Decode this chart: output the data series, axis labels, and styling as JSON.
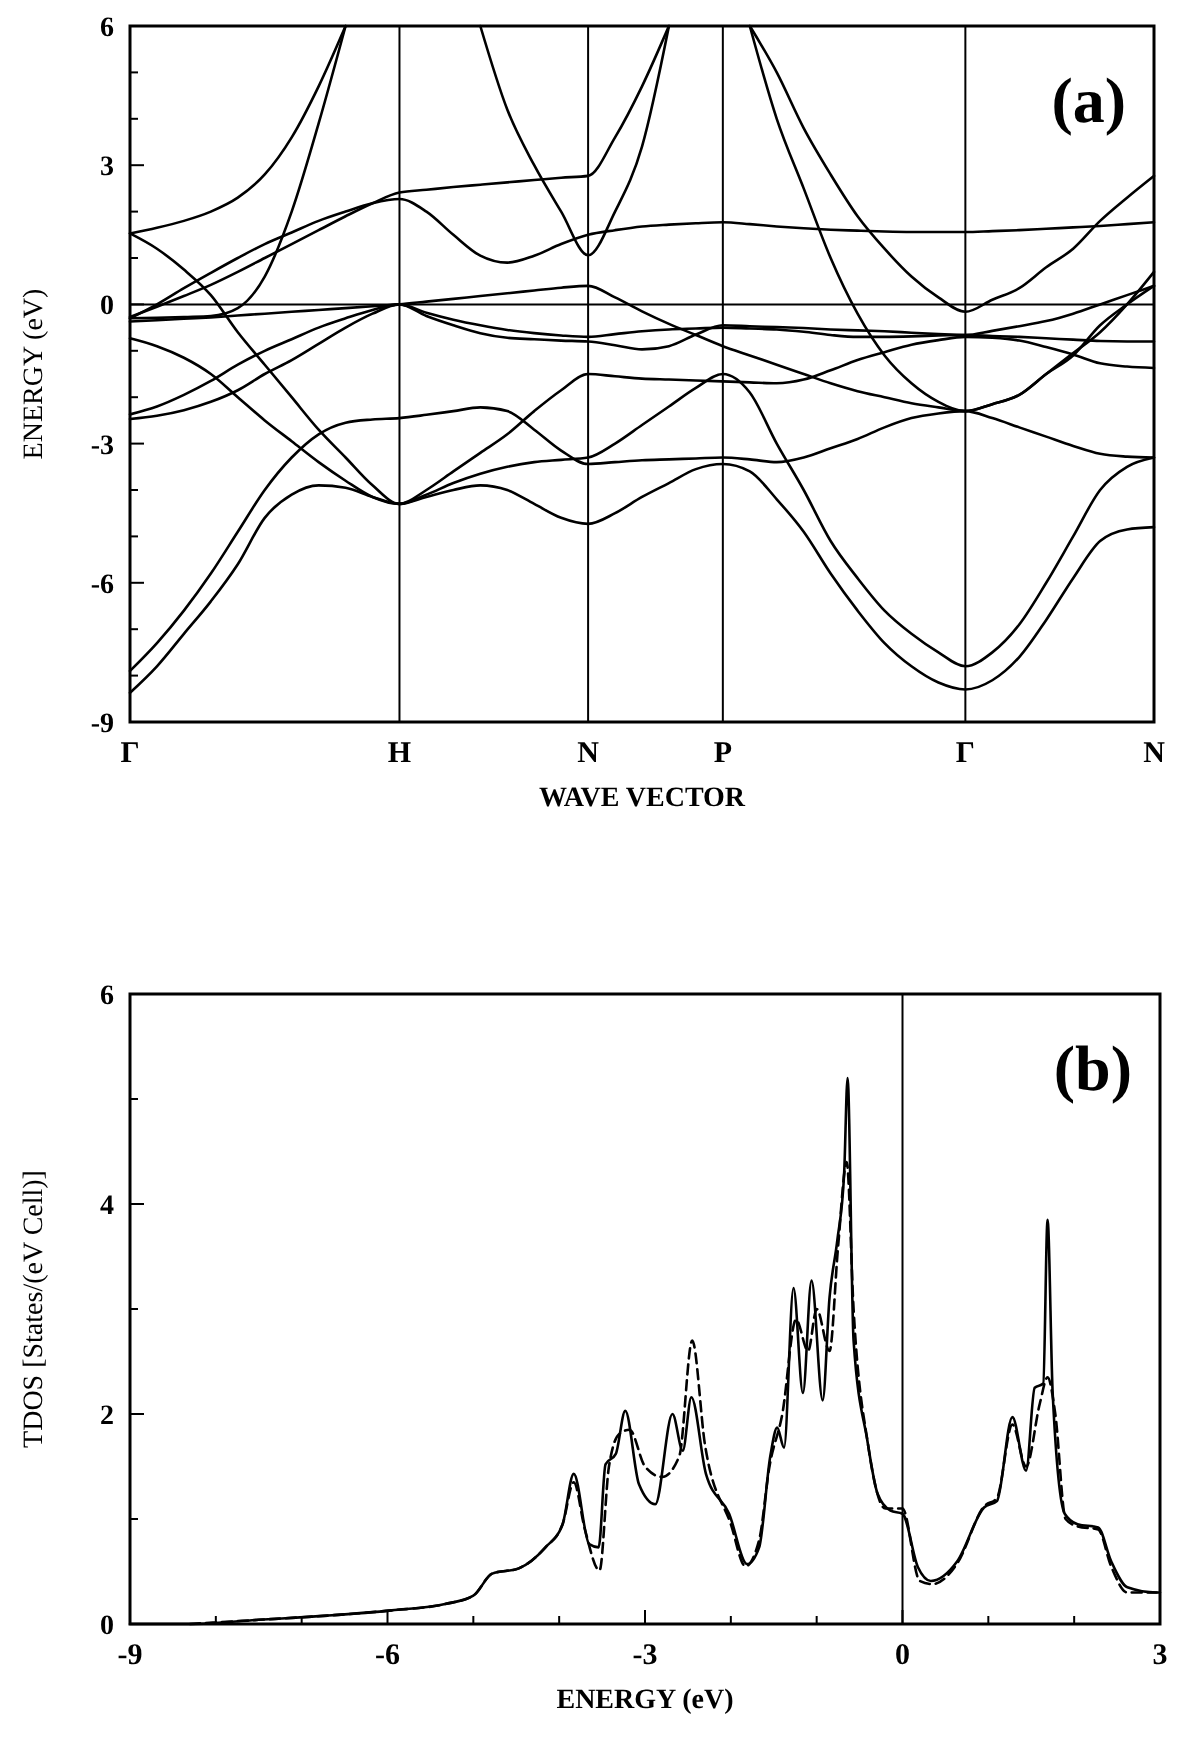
{
  "chart_data": [
    {
      "type": "line",
      "xlabel": "WAVE VECTOR",
      "ylabel": "ENERGY (eV)",
      "annotations": [
        "(a)"
      ],
      "grid": "x",
      "categories": [
        "Γ",
        null,
        null,
        null,
        null,
        null,
        null,
        null,
        null,
        null,
        "H",
        null,
        null,
        null,
        null,
        null,
        null,
        "N",
        null,
        null,
        null,
        null,
        "P",
        null,
        null,
        null,
        null,
        null,
        null,
        null,
        null,
        "Γ",
        null,
        null,
        null,
        null,
        null,
        null,
        "N"
      ],
      "ylim": [
        -9,
        6
      ],
      "yticks": [
        -9,
        {
          "value": -8,
          "label": null
        },
        {
          "value": -7,
          "label": null
        },
        -6,
        {
          "value": -5,
          "label": null
        },
        {
          "value": -4,
          "label": null
        },
        -3,
        {
          "value": -2,
          "label": null
        },
        {
          "value": -1,
          "label": null
        },
        0,
        {
          "value": 1,
          "label": null
        },
        {
          "value": 2,
          "label": null
        },
        3,
        {
          "value": 4,
          "label": null
        },
        {
          "value": 5,
          "label": null
        },
        6
      ],
      "ref_lines": [
        {
          "axis": "y",
          "value": 0,
          "color": "#000000"
        }
      ],
      "series": [
        {
          "color": "#000000",
          "values": [
            -8.37,
            -7.8,
            -7.1,
            -6.4,
            -5.6,
            -4.6,
            -4.1,
            -3.9,
            -3.95,
            -4.15,
            -4.3,
            -4.15,
            -4.0,
            -3.9,
            -4.0,
            -4.3,
            -4.6,
            -4.73,
            -4.5,
            -4.15,
            -3.85,
            -3.55,
            -3.44,
            -3.6,
            -4.2,
            -4.9,
            -5.8,
            -6.6,
            -7.3,
            -7.8,
            -8.15,
            -8.3,
            -8.1,
            -7.6,
            -6.8,
            -5.9,
            -5.1,
            -4.85,
            -4.8
          ]
        },
        {
          "color": "#000000",
          "values": [
            -7.9,
            -7.3,
            -6.6,
            -5.8,
            -4.9,
            -4.0,
            -3.3,
            -2.8,
            -2.55,
            -2.48,
            -2.45,
            -2.38,
            -2.3,
            -2.22,
            -2.3,
            -2.7,
            -3.15,
            -3.44,
            -3.4,
            -3.36,
            -3.34,
            -3.32,
            -3.3,
            -3.34,
            -3.4,
            -3.3,
            -3.1,
            -2.9,
            -2.65,
            -2.45,
            -2.35,
            -2.3,
            -2.45,
            -2.65,
            -2.85,
            -3.05,
            -3.22,
            -3.28,
            -3.3
          ]
        },
        {
          "color": "#000000",
          "values": [
            1.53,
            1.2,
            0.75,
            0.2,
            -0.6,
            -1.3,
            -2.0,
            -2.7,
            -3.3,
            -3.9,
            -4.3,
            -4.0,
            -3.6,
            -3.2,
            -2.8,
            -2.3,
            -1.85,
            -1.5,
            -1.55,
            -1.6,
            -1.62,
            -1.64,
            -1.66,
            -1.68,
            -1.7,
            -1.62,
            -1.42,
            -1.2,
            -1.03,
            -0.87,
            -0.77,
            -0.7,
            -0.72,
            -0.78,
            -0.92,
            -1.08,
            -1.27,
            -1.34,
            -1.37
          ]
        },
        {
          "color": "#000000",
          "values": [
            -0.73,
            -0.9,
            -1.15,
            -1.5,
            -2.0,
            -2.5,
            -2.95,
            -3.4,
            -3.8,
            -4.15,
            -4.3,
            -4.1,
            -3.85,
            -3.65,
            -3.5,
            -3.4,
            -3.35,
            -3.3,
            -3.0,
            -2.6,
            -2.2,
            -1.8,
            -1.5,
            -1.9,
            -3.0,
            -4.0,
            -5.1,
            -5.9,
            -6.6,
            -7.1,
            -7.5,
            -7.8,
            -7.5,
            -6.9,
            -6.0,
            -5.0,
            -4.0,
            -3.5,
            -3.3
          ]
        },
        {
          "color": "#000000",
          "values": [
            -2.47,
            -2.4,
            -2.28,
            -2.1,
            -1.85,
            -1.5,
            -1.2,
            -0.85,
            -0.5,
            -0.2,
            0,
            -0.25,
            -0.45,
            -0.62,
            -0.72,
            -0.75,
            -0.78,
            -0.8,
            -0.88,
            -0.97,
            -0.9,
            -0.65,
            -0.45,
            -0.47,
            -0.49,
            -0.51,
            -0.54,
            -0.56,
            -0.58,
            -0.61,
            -0.64,
            -0.66,
            -0.57,
            -0.47,
            -0.36,
            -0.2,
            0,
            0.2,
            0.4
          ]
        },
        {
          "color": "#000000",
          "values": [
            -2.37,
            -2.2,
            -1.95,
            -1.65,
            -1.3,
            -1.0,
            -0.75,
            -0.5,
            -0.3,
            -0.12,
            0,
            -0.18,
            -0.33,
            -0.45,
            -0.55,
            -0.62,
            -0.67,
            -0.7,
            -0.64,
            -0.58,
            -0.54,
            -0.52,
            -0.5,
            -0.52,
            -0.54,
            -0.59,
            -0.66,
            -0.7,
            -0.7,
            -0.69,
            -0.67,
            -0.66,
            -0.68,
            -0.7,
            -0.73,
            -0.76,
            -0.79,
            -0.8,
            -0.8
          ]
        },
        {
          "color": "#000000",
          "values": [
            -0.37,
            -0.34,
            -0.31,
            -0.28,
            -0.24,
            -0.2,
            -0.16,
            -0.12,
            -0.08,
            -0.04,
            0,
            0.06,
            0.12,
            0.18,
            0.24,
            0.3,
            0.36,
            0.4,
            0.15,
            -0.15,
            -0.42,
            -0.66,
            -0.9,
            -1.1,
            -1.3,
            -1.5,
            -1.7,
            -1.87,
            -2.0,
            -2.13,
            -2.22,
            -2.3,
            -2.15,
            -1.95,
            -1.5,
            -1.05,
            -0.6,
            0.0,
            0.7
          ]
        },
        {
          "color": "#000000",
          "values": [
            -0.3,
            0.0,
            0.35,
            0.68,
            1.0,
            1.3,
            1.55,
            1.8,
            2.0,
            2.18,
            2.27,
            2.0,
            1.5,
            1.05,
            0.9,
            1.05,
            1.3,
            1.5,
            1.6,
            1.68,
            1.72,
            1.75,
            1.77,
            1.73,
            1.68,
            1.64,
            1.61,
            1.59,
            1.57,
            1.56,
            1.56,
            1.56,
            1.58,
            1.6,
            1.63,
            1.66,
            1.69,
            1.73,
            1.77
          ]
        },
        {
          "color": "#000000",
          "values": [
            -0.27,
            -0.05,
            0.18,
            0.42,
            0.7,
            1.0,
            1.3,
            1.6,
            1.9,
            2.18,
            2.41,
            2.47,
            2.53,
            2.58,
            2.63,
            2.68,
            2.73,
            2.77,
            3.6,
            4.7,
            6,
            null,
            null,
            null,
            null,
            null,
            null,
            null,
            null,
            null,
            null,
            null,
            null,
            null,
            null,
            null,
            null,
            null,
            null
          ]
        },
        {
          "color": "#000000",
          "values": [
            1.53,
            1.65,
            1.8,
            2.0,
            2.3,
            2.8,
            3.6,
            4.7,
            6,
            null,
            null,
            null,
            null,
            null,
            null,
            null,
            null,
            null,
            null,
            null,
            null,
            null,
            null,
            null,
            null,
            null,
            null,
            null,
            null,
            null,
            null,
            null,
            null,
            null,
            null,
            null,
            null,
            null,
            null
          ]
        },
        {
          "color": "#000000",
          "values": [
            -0.3,
            -0.29,
            -0.27,
            -0.25,
            -0.08,
            0.6,
            2.0,
            3.9,
            6,
            null,
            null,
            null,
            null,
            null,
            null,
            null,
            null,
            null,
            null,
            null,
            null,
            null,
            null,
            null,
            null,
            null,
            null,
            null,
            null,
            null,
            null,
            null,
            null,
            null,
            null,
            null,
            null,
            null,
            null
          ]
        },
        {
          "color": "#000000",
          "values": [
            null,
            null,
            null,
            null,
            null,
            null,
            null,
            null,
            null,
            null,
            null,
            null,
            null,
            6,
            4.2,
            3.0,
            2.0,
            1.06,
            2.0,
            3.4,
            6,
            null,
            null,
            null,
            null,
            null,
            null,
            null,
            null,
            null,
            null,
            null,
            null,
            null,
            null,
            null,
            null,
            null,
            null
          ]
        },
        {
          "color": "#000000",
          "values": [
            null,
            null,
            null,
            null,
            null,
            null,
            null,
            null,
            null,
            null,
            null,
            null,
            null,
            null,
            null,
            null,
            null,
            null,
            null,
            null,
            null,
            null,
            null,
            6,
            5.0,
            3.8,
            2.8,
            1.9,
            1.2,
            0.6,
            0.15,
            -0.16,
            0.1,
            0.35,
            0.8,
            1.2,
            1.8,
            2.3,
            2.77
          ]
        },
        {
          "color": "#000000",
          "values": [
            null,
            null,
            null,
            null,
            null,
            null,
            null,
            null,
            null,
            null,
            null,
            null,
            null,
            null,
            null,
            null,
            null,
            null,
            null,
            null,
            null,
            null,
            null,
            6,
            4.0,
            2.5,
            1.0,
            -0.2,
            -1.1,
            -1.7,
            -2.1,
            -2.3,
            -2.15,
            -1.95,
            -1.5,
            -1.1,
            -0.45,
            0.0,
            0.4
          ]
        }
      ]
    },
    {
      "type": "line",
      "xlabel": "ENERGY (eV)",
      "ylabel": "TDOS [States/(eV Cell)]",
      "annotations": [
        "(b)"
      ],
      "xlim": [
        -9,
        3
      ],
      "xticks": [
        -9,
        {
          "value": -8,
          "label": null
        },
        {
          "value": -7,
          "label": null
        },
        -6,
        {
          "value": -5,
          "label": null
        },
        {
          "value": -4,
          "label": null
        },
        -3,
        {
          "value": -2,
          "label": null
        },
        {
          "value": -1,
          "label": null
        },
        0,
        {
          "value": 1,
          "label": null
        },
        {
          "value": 2,
          "label": null
        },
        3
      ],
      "ylim": [
        0,
        6
      ],
      "yticks": [
        0,
        {
          "value": 1,
          "label": null
        },
        2,
        {
          "value": 3,
          "label": null
        },
        4,
        {
          "value": 5,
          "label": null
        },
        6
      ],
      "ref_lines": [
        {
          "axis": "x",
          "value": 0,
          "color": "#000000"
        }
      ],
      "series": [
        {
          "color": "#000000",
          "line_style": "solid",
          "x": [
            -9,
            -8.3,
            -7.5,
            -6.7,
            -5.95,
            -5.33,
            -5.0,
            -4.78,
            -4.47,
            -4.16,
            -3.96,
            -3.83,
            -3.65,
            -3.54,
            -3.46,
            -3.34,
            -3.23,
            -3.07,
            -2.88,
            -2.68,
            -2.56,
            -2.46,
            -2.29,
            -2.02,
            -1.81,
            -1.67,
            -1.54,
            -1.46,
            -1.38,
            -1.27,
            -1.16,
            -1.06,
            -0.93,
            -0.85,
            -0.76,
            -0.68,
            -0.64,
            -0.57,
            -0.41,
            -0.29,
            -0.14,
            0,
            0.18,
            0.33,
            0.64,
            0.95,
            1.1,
            1.28,
            1.44,
            1.54,
            1.64,
            1.69,
            1.75,
            1.89,
            2.04,
            2.28,
            2.43,
            2.62,
            2.96,
            3
          ],
          "values": [
            0,
            0,
            0.04,
            0.08,
            0.13,
            0.19,
            0.27,
            0.48,
            0.53,
            0.73,
            0.95,
            1.43,
            0.76,
            0.73,
            1.52,
            1.62,
            2.03,
            1.33,
            1.14,
            2.0,
            1.65,
            2.16,
            1.43,
            1.05,
            0.57,
            0.73,
            1.6,
            1.87,
            1.68,
            3.2,
            2.2,
            3.27,
            2.13,
            3.11,
            3.65,
            4.29,
            5.2,
            2.7,
            1.75,
            1.24,
            1.08,
            1.05,
            0.54,
            0.41,
            0.6,
            1.11,
            1.17,
            1.97,
            1.46,
            2.25,
            2.29,
            3.85,
            2.19,
            1.05,
            0.95,
            0.92,
            0.6,
            0.35,
            0.3,
            0.3
          ]
        },
        {
          "color": "#000000",
          "line_style": "dashed",
          "x": [
            -8.3,
            -7.5,
            -6.7,
            -5.95,
            -5.33,
            -5.0,
            -4.78,
            -4.47,
            -4.16,
            -3.96,
            -3.83,
            -3.7,
            -3.53,
            -3.42,
            -3.3,
            -3.18,
            -3.0,
            -2.8,
            -2.6,
            -2.45,
            -2.3,
            -2.0,
            -1.83,
            -1.67,
            -1.55,
            -1.4,
            -1.24,
            -1.1,
            -1.0,
            -0.85,
            -0.75,
            -0.65,
            -0.57,
            -0.4,
            -0.2,
            0,
            0.2,
            0.35,
            0.64,
            0.95,
            1.1,
            1.28,
            1.44,
            1.6,
            1.69,
            1.78,
            1.9,
            2.04,
            2.28,
            2.43,
            2.62,
            2.96
          ],
          "values": [
            0,
            0.04,
            0.08,
            0.13,
            0.19,
            0.27,
            0.48,
            0.53,
            0.73,
            0.95,
            1.35,
            0.9,
            0.51,
            1.5,
            1.81,
            1.85,
            1.5,
            1.4,
            1.6,
            2.7,
            1.7,
            0.95,
            0.55,
            0.8,
            1.5,
            2.0,
            2.9,
            2.6,
            3.0,
            2.6,
            3.6,
            4.4,
            3.0,
            1.7,
            1.1,
            1.1,
            0.41,
            0.38,
            0.58,
            1.12,
            1.2,
            1.9,
            1.5,
            2.1,
            2.35,
            2.0,
            1.0,
            0.93,
            0.9,
            0.55,
            0.3,
            0.3
          ]
        }
      ]
    }
  ]
}
